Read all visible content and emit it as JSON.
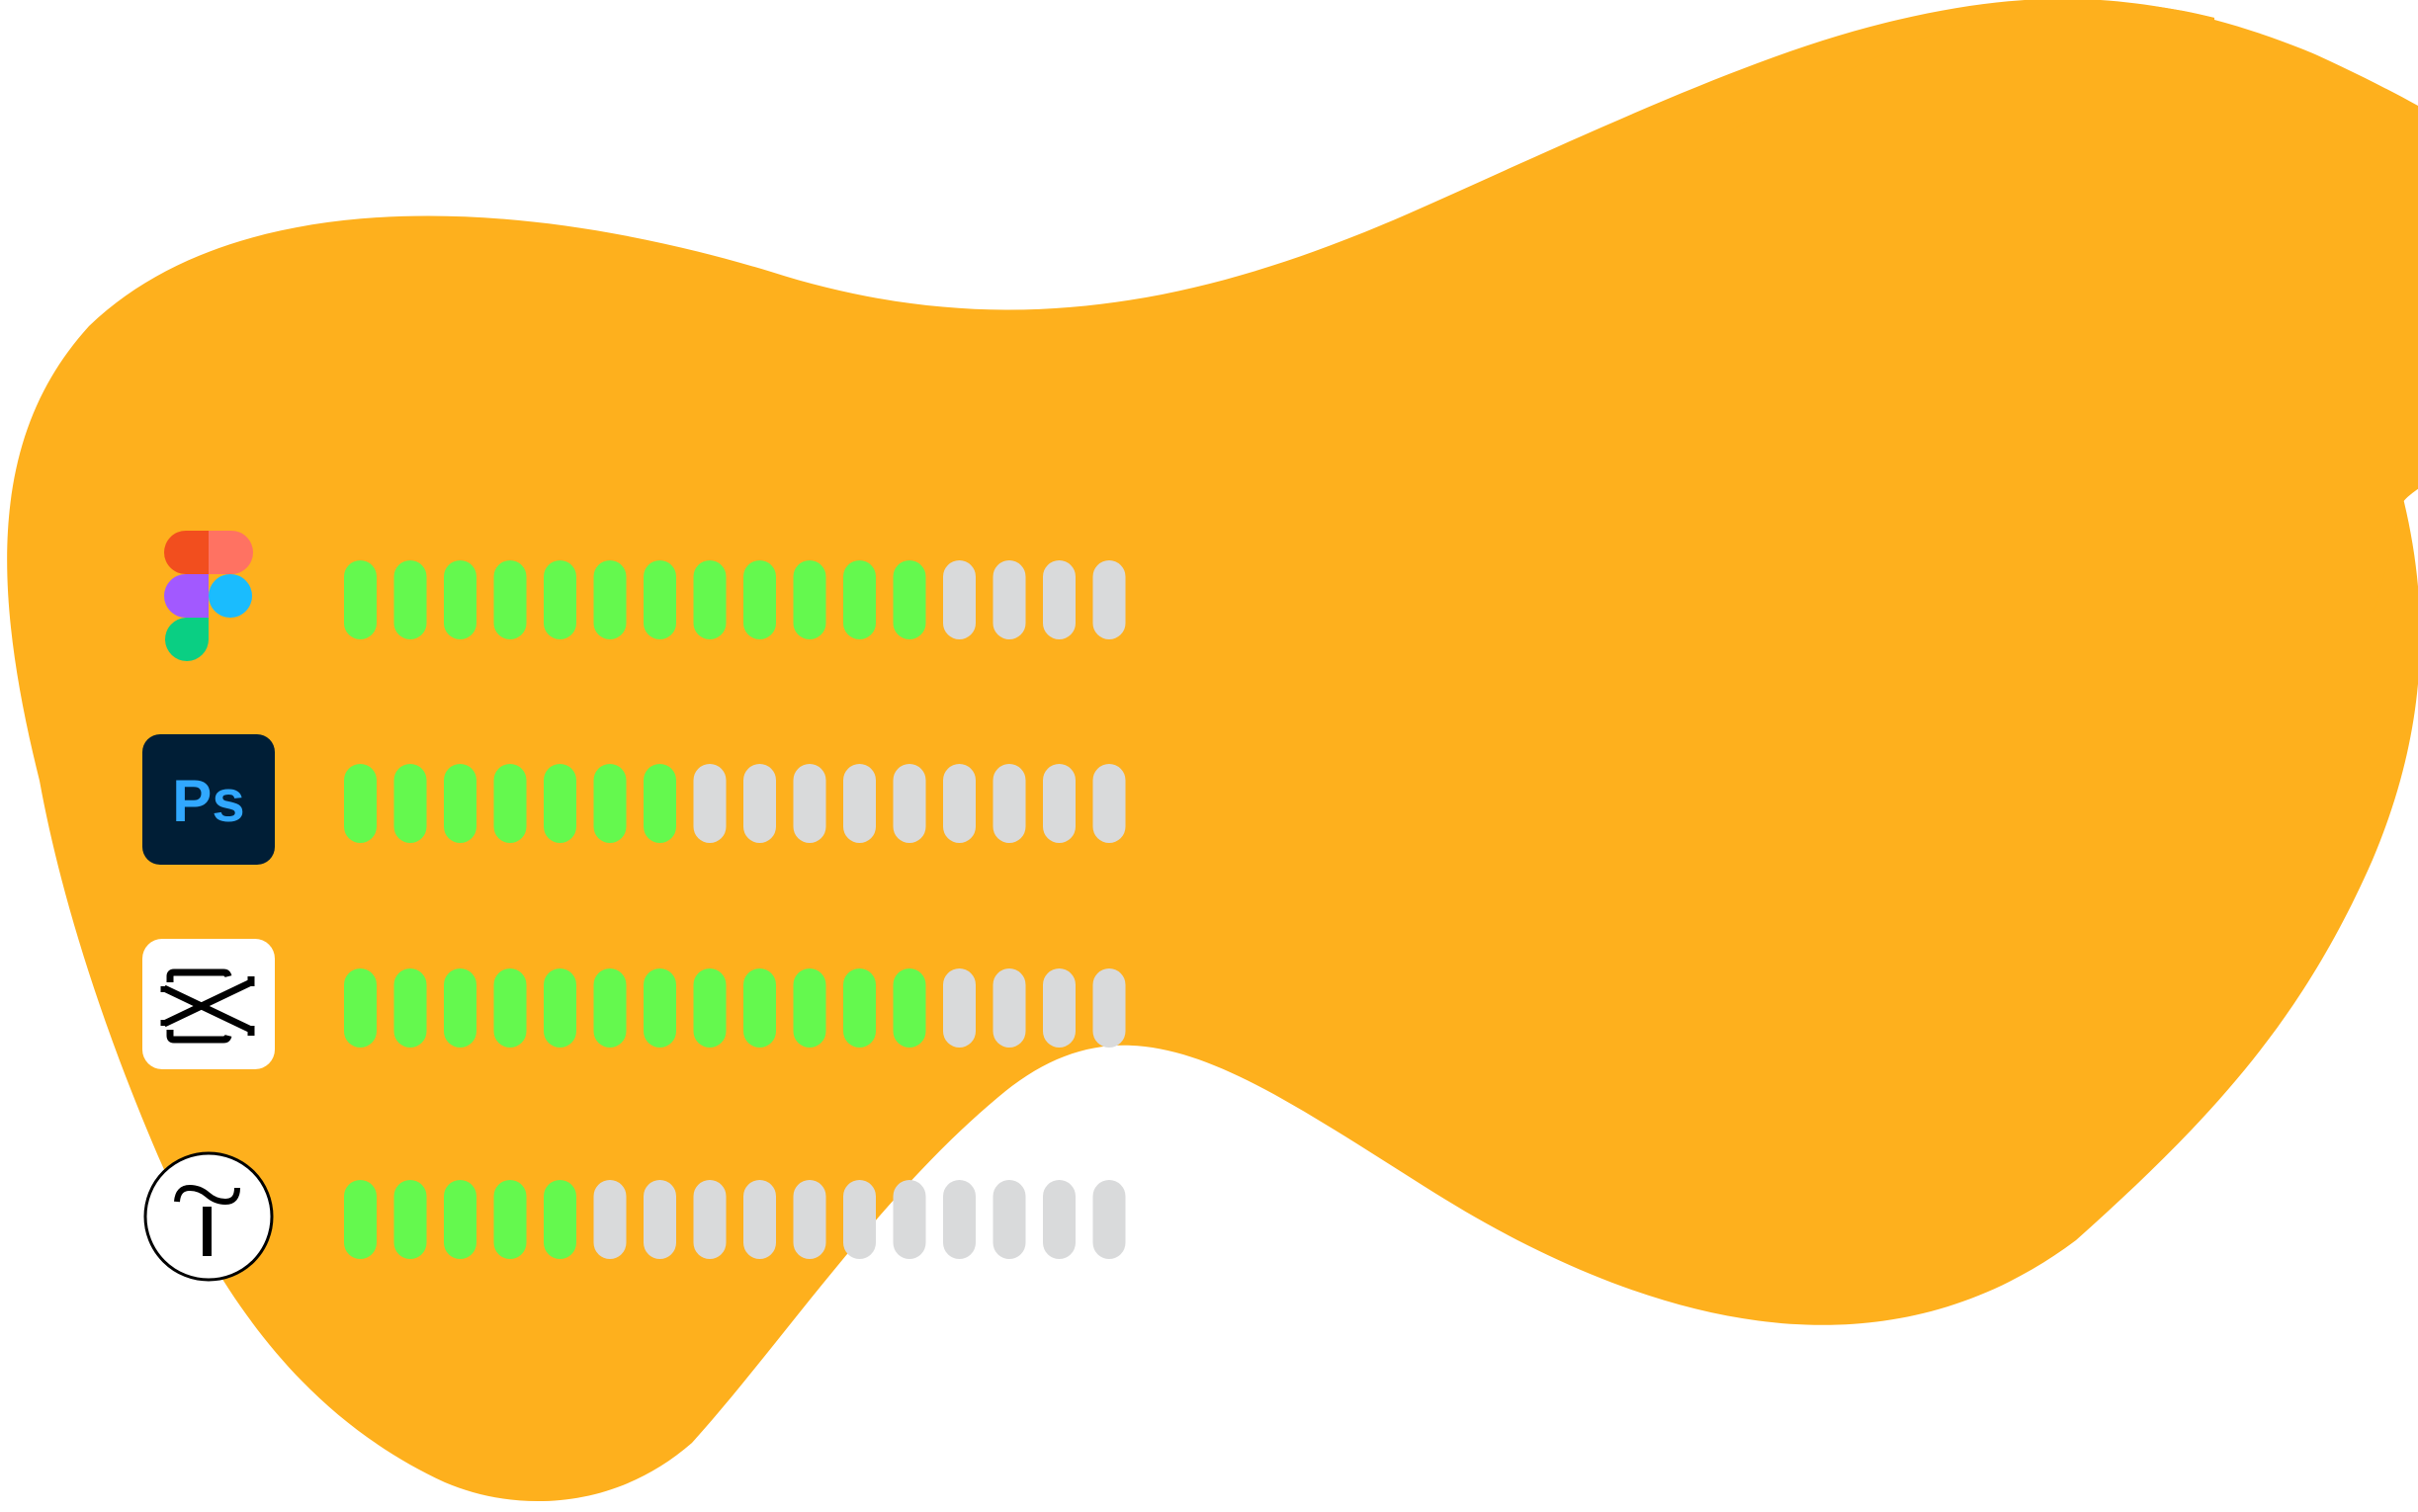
{
  "colors": {
    "background": "#ffffff",
    "blob": "#FEB01D",
    "filled_segment": "#64F94E",
    "empty_segment": "#D9DADB"
  },
  "meter": {
    "total_segments": 16
  },
  "skills": [
    {
      "icon": "figma-icon",
      "filled_segments": 12
    },
    {
      "icon": "photoshop-icon",
      "icon_text": "Ps",
      "filled_segments": 7
    },
    {
      "icon": "capcut-icon",
      "filled_segments": 12
    },
    {
      "icon": "tilda-icon",
      "filled_segments": 5
    }
  ]
}
